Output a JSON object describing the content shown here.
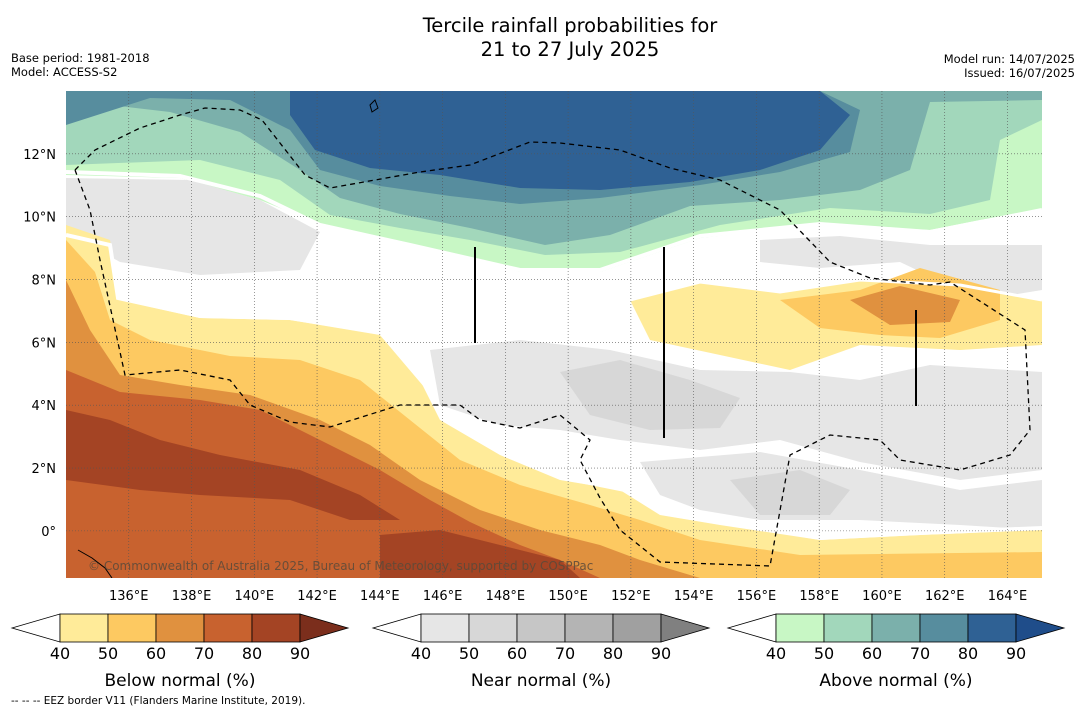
{
  "title_line1": "Tercile rainfall probabilities for",
  "title_line2": "21 to 27 July 2025",
  "meta": {
    "base_period": "Base period: 1981-2018",
    "model": "Model: ACCESS-S2",
    "model_run": "Model run: 14/07/2025",
    "issued": "Issued: 16/07/2025"
  },
  "copyright": "© Commonwealth of Australia 2025, Bureau of Meteorology, supported by COSPPac",
  "footnote": "--  --  -- EEZ border V11 (Flanders Marine Institute, 2019).",
  "lat_labels": [
    "12°N",
    "10°N",
    "8°N",
    "6°N",
    "4°N",
    "2°N",
    "0°"
  ],
  "lat_values": [
    12,
    10,
    8,
    6,
    4,
    2,
    0
  ],
  "lon_labels": [
    "136°E",
    "138°E",
    "140°E",
    "142°E",
    "144°E",
    "146°E",
    "148°E",
    "150°E",
    "152°E",
    "154°E",
    "156°E",
    "158°E",
    "160°E",
    "162°E",
    "164°E"
  ],
  "lon_values": [
    136,
    138,
    140,
    142,
    144,
    146,
    148,
    150,
    152,
    154,
    156,
    158,
    160,
    162,
    164
  ],
  "extent": {
    "lon": [
      134.0,
      165.1
    ],
    "lat": [
      -1.5,
      14.0
    ]
  },
  "colorbars": [
    {
      "label": "Below normal (%)",
      "ticks": [
        "40",
        "50",
        "60",
        "70",
        "80",
        "90"
      ],
      "colors": [
        "#ffffff",
        "#ffeb99",
        "#fdc961",
        "#e0913f",
        "#c8622f",
        "#a44424",
        "#7b2e1c"
      ]
    },
    {
      "label": "Near normal (%)",
      "ticks": [
        "40",
        "50",
        "60",
        "70",
        "80",
        "90"
      ],
      "colors": [
        "#ffffff",
        "#e6e6e6",
        "#d7d7d7",
        "#c6c6c6",
        "#b4b4b4",
        "#a0a0a0",
        "#808080"
      ]
    },
    {
      "label": "Above normal (%)",
      "ticks": [
        "40",
        "50",
        "60",
        "70",
        "80",
        "90"
      ],
      "colors": [
        "#ffffff",
        "#c8f7c5",
        "#a2d7bb",
        "#7bb0ab",
        "#578d9e",
        "#2f6194",
        "#1f4d8a"
      ]
    }
  ]
}
